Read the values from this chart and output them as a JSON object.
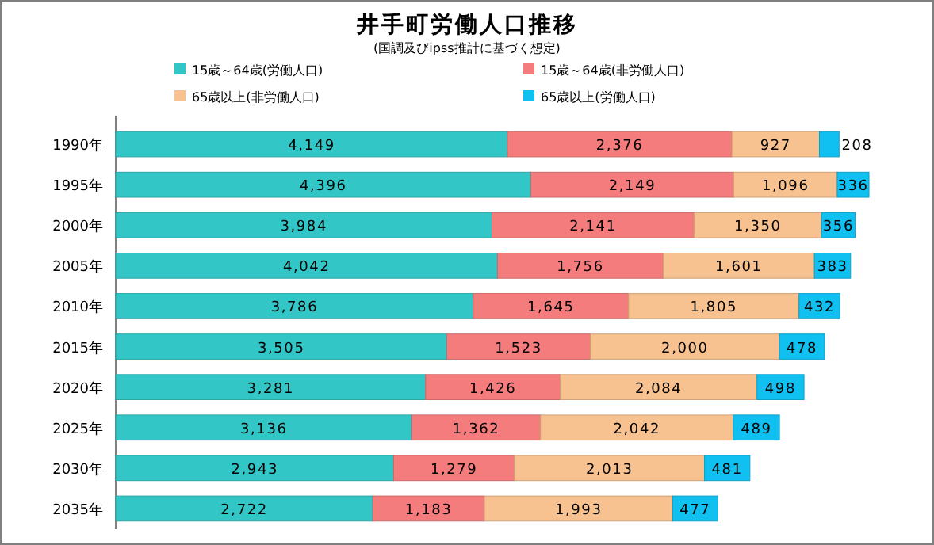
{
  "chart_data": {
    "type": "bar",
    "orientation": "horizontal",
    "stacked": true,
    "title": "井手町労働人口推移",
    "subtitle": "(国調及びipss推計に基づく想定)",
    "categories": [
      "1990年",
      "1995年",
      "2000年",
      "2005年",
      "2010年",
      "2015年",
      "2020年",
      "2025年",
      "2030年",
      "2035年"
    ],
    "series": [
      {
        "name": "15歳～64歳(労働人口)",
        "color": "#33c6c6",
        "values": [
          4149,
          4396,
          3984,
          4042,
          3786,
          3505,
          3281,
          3136,
          2943,
          2722
        ],
        "value_labels": [
          "4,149",
          "4,396",
          "3,984",
          "4,042",
          "3,786",
          "3,505",
          "3,281",
          "3,136",
          "2,943",
          "2,722"
        ]
      },
      {
        "name": "15歳～64歳(非労働人口)",
        "color": "#f47c7c",
        "values": [
          2376,
          2149,
          2141,
          1756,
          1645,
          1523,
          1426,
          1362,
          1279,
          1183
        ],
        "value_labels": [
          "2,376",
          "2,149",
          "2,141",
          "1,756",
          "1,645",
          "1,523",
          "1,426",
          "1,362",
          "1,279",
          "1,183"
        ]
      },
      {
        "name": "65歳以上(非労働人口)",
        "color": "#f7c28f",
        "values": [
          927,
          1096,
          1350,
          1601,
          1805,
          2000,
          2084,
          2042,
          2013,
          1993
        ],
        "value_labels": [
          "927",
          "1,096",
          "1,350",
          "1,601",
          "1,805",
          "2,000",
          "2,084",
          "2,042",
          "2,013",
          "1,993"
        ]
      },
      {
        "name": "65歳以上(労働人口)",
        "color": "#10c0f0",
        "values": [
          208,
          336,
          356,
          383,
          432,
          478,
          498,
          489,
          481,
          477
        ],
        "value_labels": [
          "208",
          "336",
          "356",
          "383",
          "432",
          "478",
          "498",
          "489",
          "481",
          "477"
        ]
      }
    ],
    "legend": "top",
    "tick_labels": "y"
  }
}
